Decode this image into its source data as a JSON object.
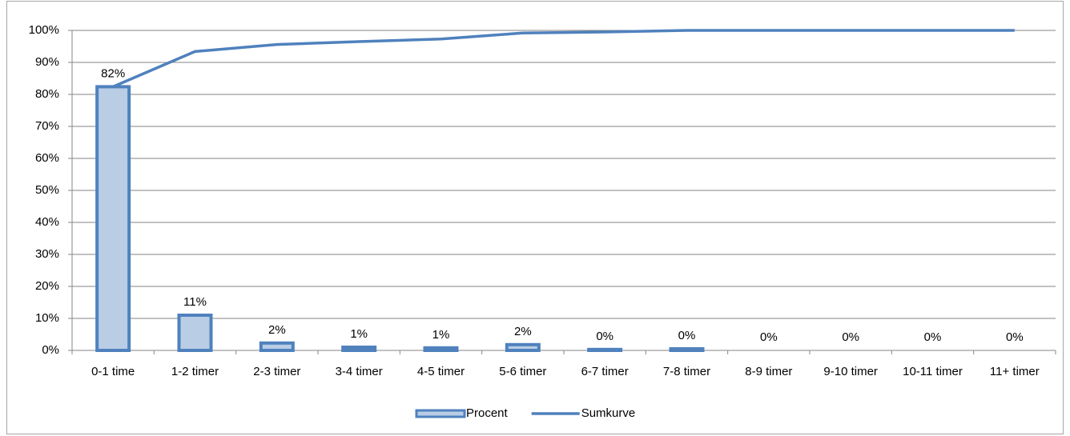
{
  "chart_data": {
    "type": "bar-line",
    "categories": [
      "0-1 time",
      "1-2 timer",
      "2-3 timer",
      "3-4 timer",
      "4-5 timer",
      "5-6 timer",
      "6-7 timer",
      "7-8 timer",
      "8-9 timer",
      "9-10 timer",
      "10-11 timer",
      "11+ timer"
    ],
    "series": [
      {
        "name": "Procent",
        "type": "bar",
        "color": "#4f81bd",
        "fill": "#b9cde5",
        "values": [
          82.4,
          11,
          2.3,
          1,
          0.8,
          1.8,
          0.3,
          0.5,
          0,
          0,
          0,
          0
        ],
        "value_labels": [
          "82%",
          "11%",
          "2%",
          "1%",
          "1%",
          "2%",
          "0%",
          "0%",
          "0%",
          "0%",
          "0%",
          "0%"
        ]
      },
      {
        "name": "Sumkurve",
        "type": "line",
        "color": "#4f81bd",
        "values": [
          82.4,
          93.4,
          95.6,
          96.5,
          97.3,
          99.2,
          99.5,
          100,
          100,
          100,
          100,
          100
        ]
      }
    ],
    "ylim": [
      0,
      100
    ],
    "yticks": [
      {
        "value": 0,
        "label": "0%"
      },
      {
        "value": 10,
        "label": "10%"
      },
      {
        "value": 20,
        "label": "20%"
      },
      {
        "value": 30,
        "label": "30%"
      },
      {
        "value": 40,
        "label": "40%"
      },
      {
        "value": 50,
        "label": "50%"
      },
      {
        "value": 60,
        "label": "60%"
      },
      {
        "value": 70,
        "label": "70%"
      },
      {
        "value": 80,
        "label": "80%"
      },
      {
        "value": 90,
        "label": "90%"
      },
      {
        "value": 100,
        "label": "100%"
      }
    ],
    "grid": true,
    "legend": "bottom"
  }
}
